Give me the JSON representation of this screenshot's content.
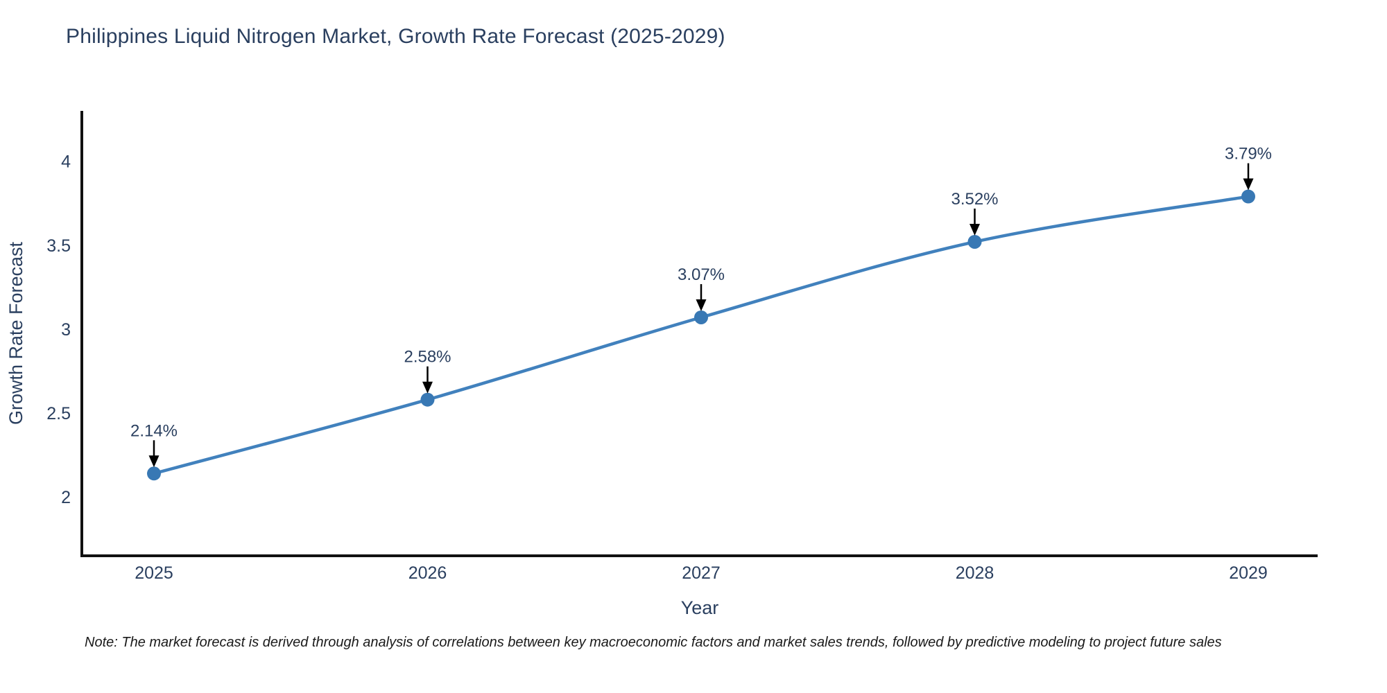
{
  "figure": {
    "note": "Note: The market forecast is derived through analysis of correlations between key macroeconomic factors and market sales trends, followed by predictive modeling to project future sales"
  },
  "chart_data": {
    "type": "line",
    "title": "Philippines Liquid Nitrogen Market, Growth Rate Forecast (2025-2029)",
    "x": [
      2025,
      2026,
      2027,
      2028,
      2029
    ],
    "series": [
      {
        "name": "Growth Rate Forecast",
        "values": [
          2.14,
          2.58,
          3.07,
          3.52,
          3.79
        ]
      }
    ],
    "point_labels": [
      "2.14%",
      "2.58%",
      "3.07%",
      "3.52%",
      "3.79%"
    ],
    "xlabel": "Year",
    "ylabel": "Growth Rate Forecast",
    "xticklabels": [
      "2025",
      "2026",
      "2027",
      "2028",
      "2029"
    ],
    "yticks": [
      2,
      2.5,
      3,
      3.5,
      4
    ],
    "yticklabels": [
      "2",
      "2.5",
      "3",
      "3.5",
      "4"
    ],
    "ylim": [
      1.65,
      4.3
    ],
    "grid": false,
    "legend_position": "none",
    "line_shape": "spline",
    "colors": {
      "line": "#4181bd",
      "marker": "#3878b4",
      "axis": "#111111",
      "tick_text": "#2a3f5f",
      "annotation_text": "#2a3f5f",
      "annotation_arrow": "#000000",
      "title_text": "#2a3f5f",
      "background": "#ffffff"
    }
  }
}
